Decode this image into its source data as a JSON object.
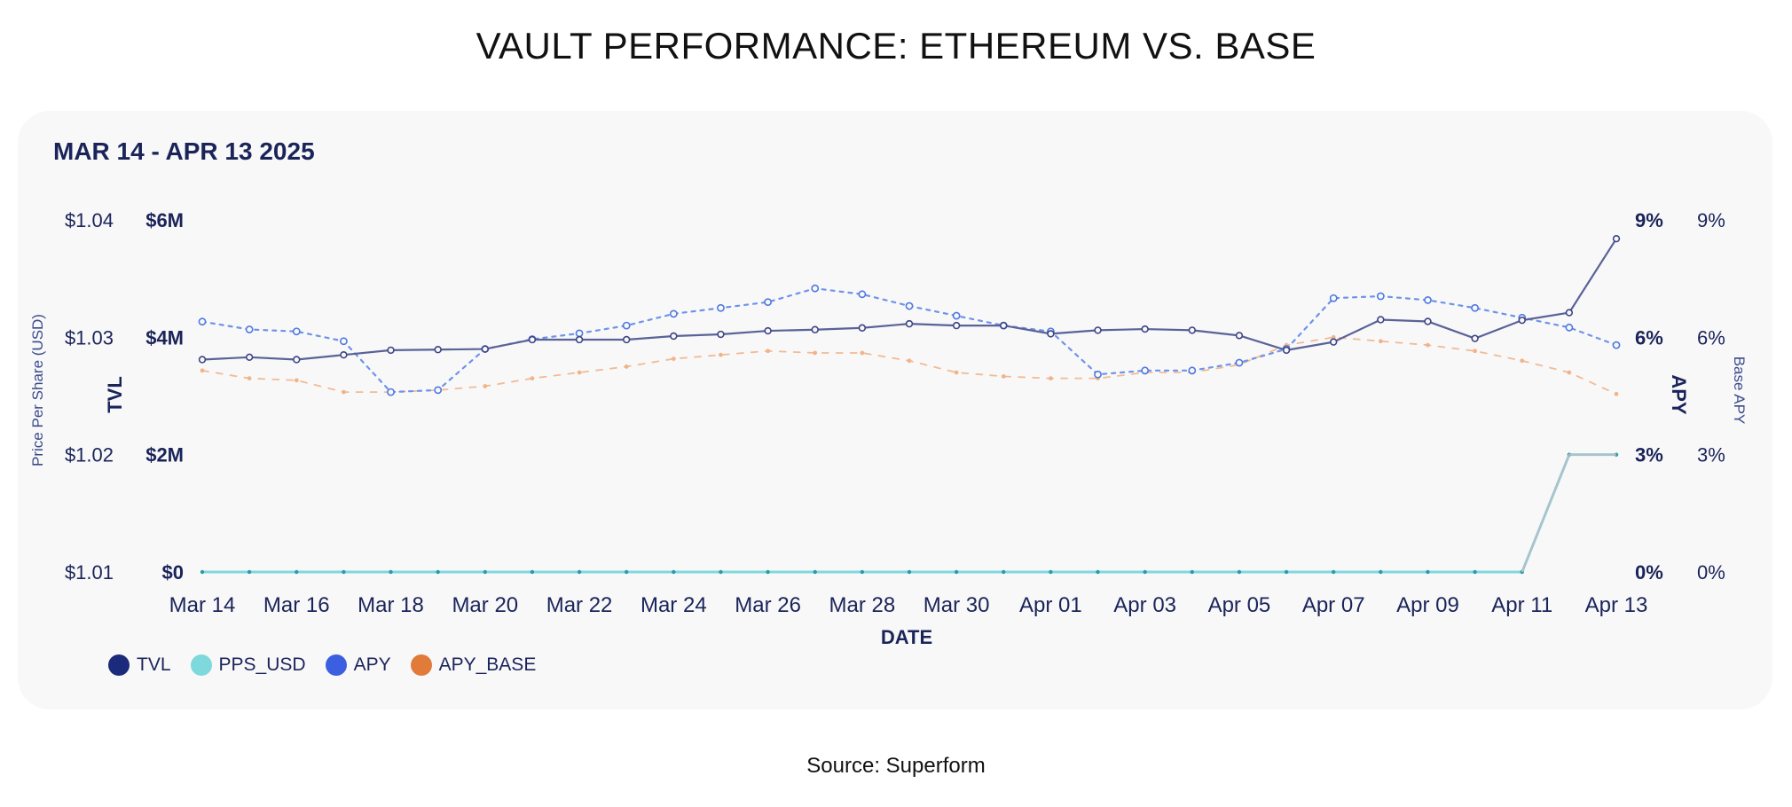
{
  "title": "VAULT PERFORMANCE: ETHEREUM VS. BASE",
  "date_range": "MAR 14 - APR 13 2025",
  "source": "Source: Superform",
  "chart_data": {
    "type": "line",
    "x": [
      "Mar 14",
      "Mar 15",
      "Mar 16",
      "Mar 17",
      "Mar 18",
      "Mar 19",
      "Mar 20",
      "Mar 21",
      "Mar 22",
      "Mar 23",
      "Mar 24",
      "Mar 25",
      "Mar 26",
      "Mar 27",
      "Mar 28",
      "Mar 29",
      "Mar 30",
      "Mar 31",
      "Apr 01",
      "Apr 02",
      "Apr 03",
      "Apr 04",
      "Apr 05",
      "Apr 06",
      "Apr 07",
      "Apr 08",
      "Apr 09",
      "Apr 10",
      "Apr 11",
      "Apr 12",
      "Apr 13"
    ],
    "x_tick_labels": [
      "Mar 14",
      "Mar 16",
      "Mar 18",
      "Mar 20",
      "Mar 22",
      "Mar 24",
      "Mar 26",
      "Mar 28",
      "Mar 30",
      "Apr 01",
      "Apr 03",
      "Apr 05",
      "Apr 07",
      "Apr 09",
      "Apr 11",
      "Apr 13"
    ],
    "xlabel": "DATE",
    "axes": {
      "pps": {
        "label": "Price Per Share (USD)",
        "ticks": [
          "$1.01",
          "$1.02",
          "$1.03",
          "$1.04"
        ],
        "ylim": [
          1.01,
          1.04
        ]
      },
      "tvl": {
        "label": "TVL",
        "ticks": [
          "$0",
          "$2M",
          "$4M",
          "$6M"
        ],
        "ylim": [
          0,
          6000000
        ]
      },
      "apy": {
        "label": "APY",
        "ticks": [
          "0%",
          "3%",
          "6%",
          "9%"
        ],
        "ylim": [
          0,
          9
        ]
      },
      "apy_base": {
        "label": "Base APY",
        "ticks": [
          "0%",
          "3%",
          "6%",
          "9%"
        ],
        "ylim": [
          0,
          9
        ]
      }
    },
    "series": [
      {
        "name": "TVL",
        "axis": "tvl",
        "color": "#1b2a7a",
        "style": "solid",
        "values": [
          3620000,
          3660000,
          3620000,
          3700000,
          3780000,
          3790000,
          3800000,
          3960000,
          3960000,
          3960000,
          4020000,
          4050000,
          4110000,
          4130000,
          4160000,
          4230000,
          4200000,
          4200000,
          4060000,
          4120000,
          4140000,
          4120000,
          4030000,
          3780000,
          3920000,
          4300000,
          4270000,
          3980000,
          4290000,
          4420000,
          5680000
        ]
      },
      {
        "name": "PPS_USD",
        "axis": "pps",
        "color": "#7fd8dc",
        "style": "solid",
        "values": [
          1.01,
          1.01,
          1.01,
          1.01,
          1.01,
          1.01,
          1.01,
          1.01,
          1.01,
          1.01,
          1.01,
          1.01,
          1.01,
          1.01,
          1.01,
          1.01,
          1.01,
          1.01,
          1.01,
          1.01,
          1.01,
          1.01,
          1.01,
          1.01,
          1.01,
          1.01,
          1.01,
          1.01,
          1.01,
          1.02,
          1.02
        ]
      },
      {
        "name": "APY",
        "axis": "apy",
        "color": "#3b6fe0",
        "style": "dotted",
        "values": [
          6.4,
          6.2,
          6.15,
          5.9,
          4.6,
          4.65,
          5.7,
          5.95,
          6.1,
          6.3,
          6.6,
          6.75,
          6.9,
          7.25,
          7.1,
          6.8,
          6.55,
          6.3,
          6.15,
          5.05,
          5.15,
          5.15,
          5.35,
          5.7,
          7.0,
          7.05,
          6.95,
          6.75,
          6.5,
          6.25,
          5.8
        ]
      },
      {
        "name": "APY_BASE",
        "axis": "apy_base",
        "color": "#e07b39",
        "style": "dashed",
        "values": [
          5.15,
          4.95,
          4.9,
          4.6,
          4.6,
          4.65,
          4.75,
          4.95,
          5.1,
          5.25,
          5.45,
          5.55,
          5.65,
          5.6,
          5.6,
          5.4,
          5.1,
          5.0,
          4.95,
          4.95,
          5.1,
          5.1,
          5.3,
          5.8,
          6.0,
          5.9,
          5.8,
          5.65,
          5.4,
          5.1,
          4.55
        ]
      }
    ],
    "legend": {
      "position": "bottom-left",
      "entries": [
        "TVL",
        "PPS_USD",
        "APY",
        "APY_BASE"
      ]
    },
    "grid": false
  }
}
